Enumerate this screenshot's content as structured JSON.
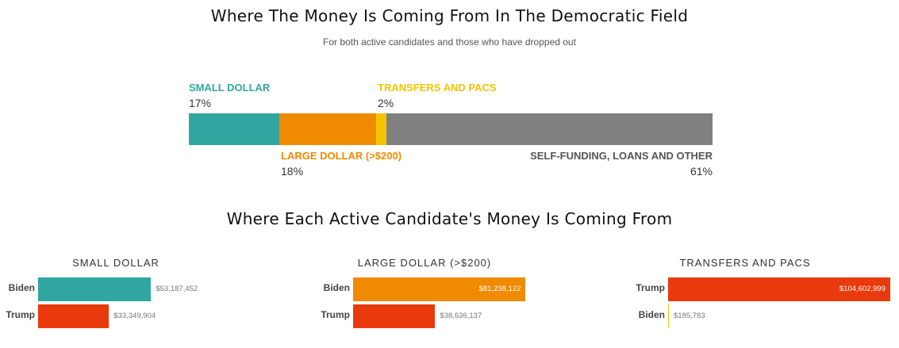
{
  "chart_data": [
    {
      "type": "bar",
      "orientation": "horizontal-stacked",
      "title": "Where The Money Is Coming From In The Democratic Field",
      "subtitle": "For both active candidates and those who have dropped out",
      "segments": [
        {
          "name": "SMALL DOLLAR",
          "value": 17,
          "label": "17%",
          "color": "#2fa7a0"
        },
        {
          "name": "LARGE DOLLAR (>$200)",
          "value": 18,
          "label": "18%",
          "color": "#f08a00"
        },
        {
          "name": "TRANSFERS AND PACS",
          "value": 2,
          "label": "2%",
          "color": "#f5c400"
        },
        {
          "name": "SELF-FUNDING, LOANS AND OTHER",
          "value": 61,
          "label": "61%",
          "color": "#808080"
        }
      ]
    },
    {
      "type": "bar",
      "orientation": "horizontal",
      "heading": "Where Each Active Candidate's Money Is Coming From",
      "panels": [
        {
          "title": "SMALL DOLLAR",
          "rows": [
            {
              "name": "Biden",
              "value": 53187452,
              "label": "$53,187,452",
              "color": "#2fa7a0"
            },
            {
              "name": "Trump",
              "value": 33349904,
              "label": "$33,349,904",
              "color": "#e83a0c"
            }
          ]
        },
        {
          "title": "LARGE DOLLAR (>$200)",
          "rows": [
            {
              "name": "Biden",
              "value": 81238122,
              "label": "$81,238,122",
              "color": "#f08a00"
            },
            {
              "name": "Trump",
              "value": 38636137,
              "label": "$38,636,137",
              "color": "#e83a0c"
            }
          ]
        },
        {
          "title": "TRANSFERS AND PACS",
          "rows": [
            {
              "name": "Trump",
              "value": 104602999,
              "label": "$104,602,999",
              "color": "#e83a0c"
            },
            {
              "name": "Biden",
              "value": 185783,
              "label": "$185,783",
              "color": "#f5c400"
            }
          ]
        }
      ]
    }
  ]
}
